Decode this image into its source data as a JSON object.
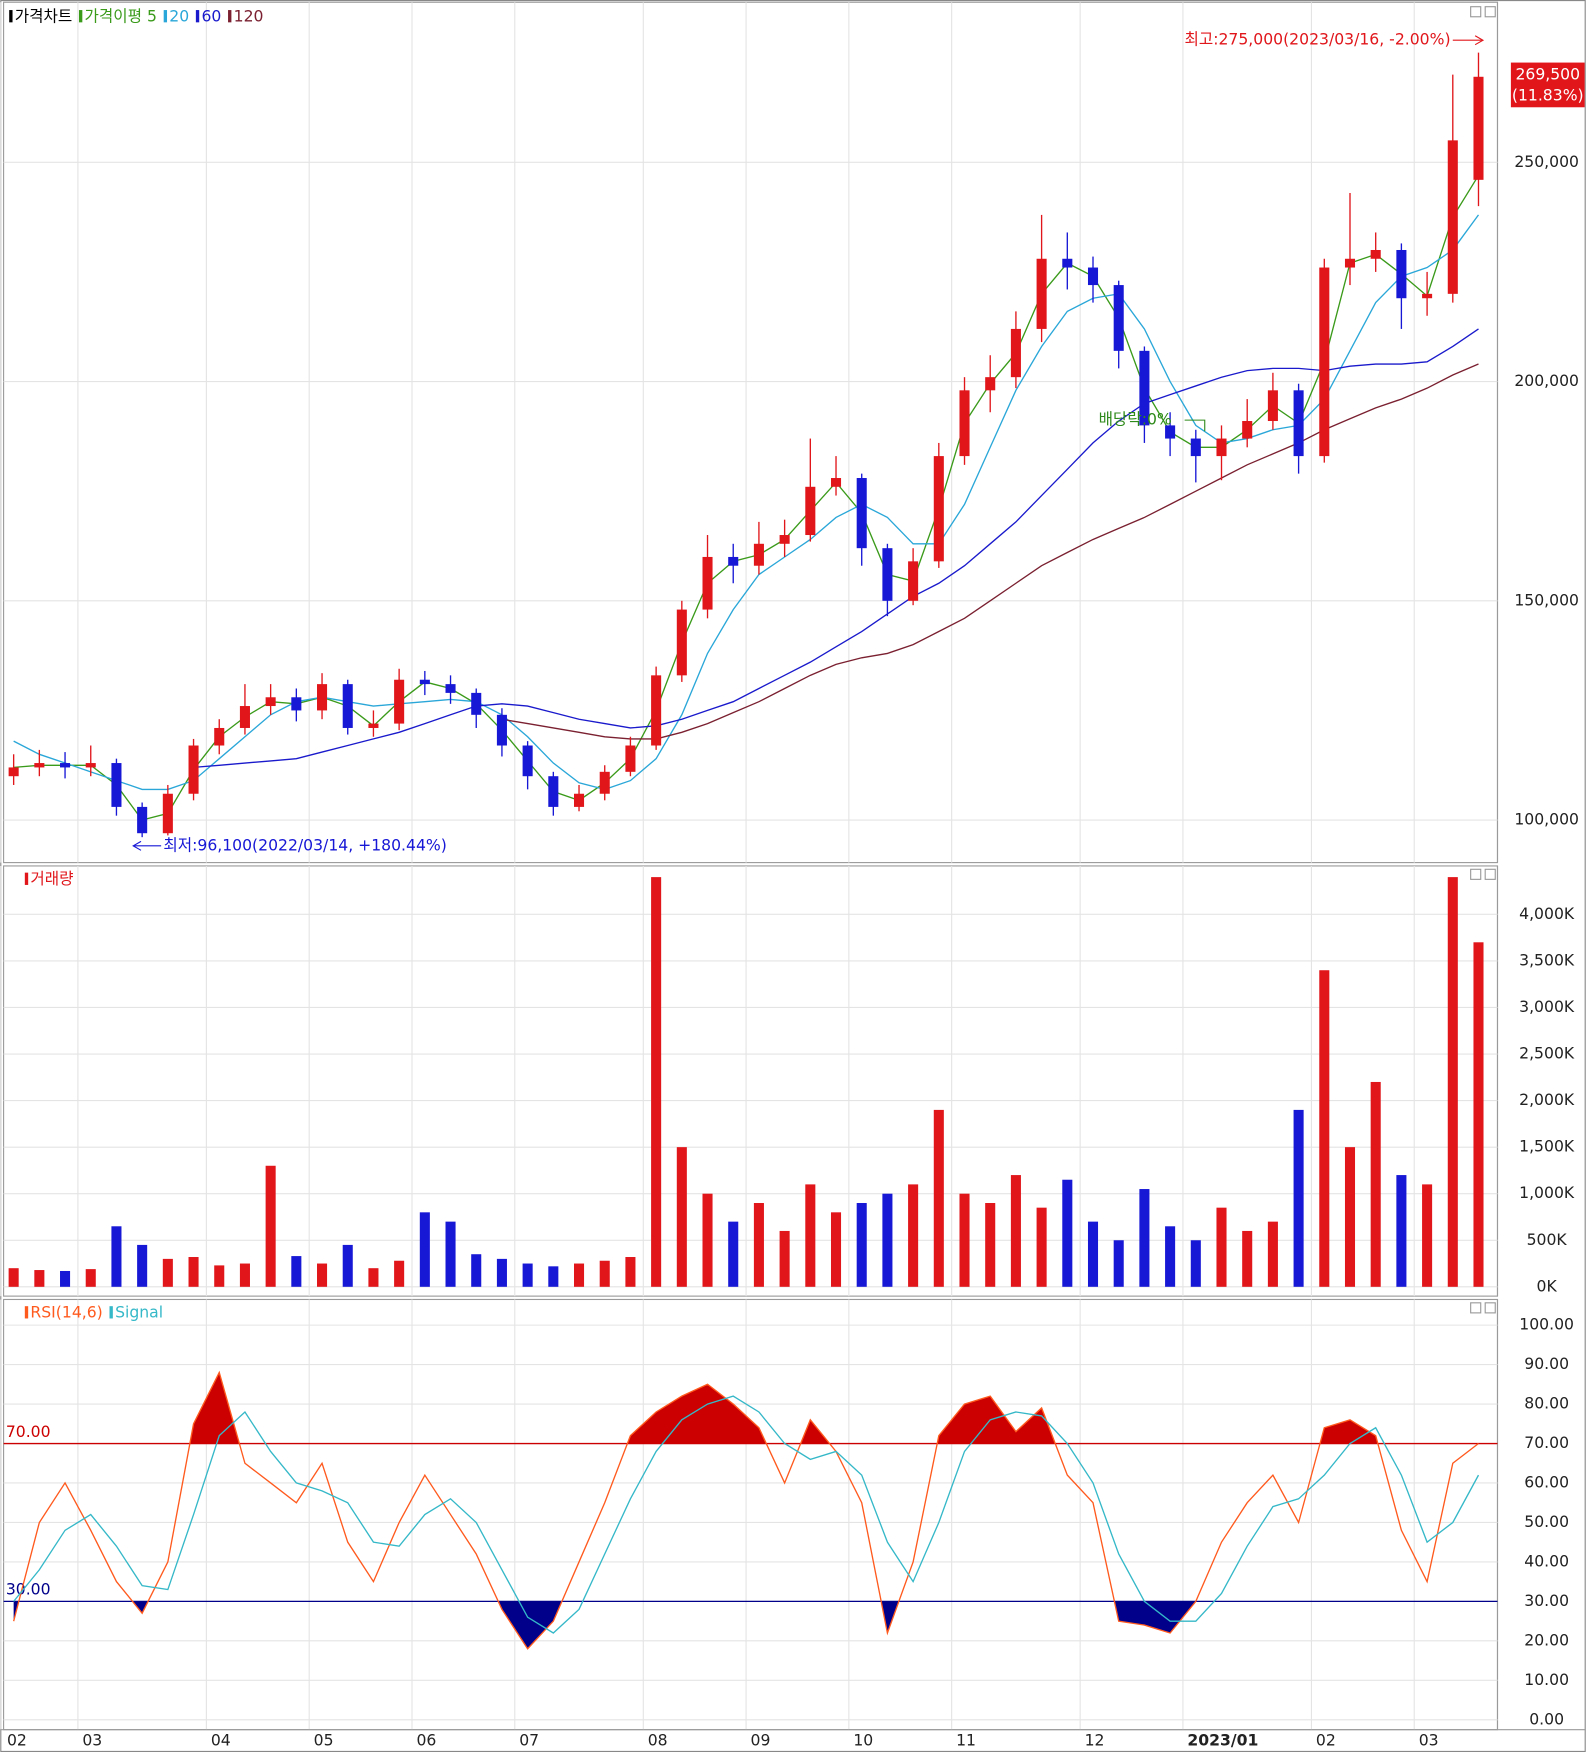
{
  "chart_data": [
    {
      "type": "candlestick",
      "title": "가격차트",
      "title_color": "#000000",
      "categories": [
        "02",
        null,
        null,
        "03",
        null,
        null,
        null,
        null,
        "04",
        null,
        null,
        null,
        "05",
        null,
        null,
        null,
        "06",
        null,
        null,
        null,
        "07",
        null,
        null,
        null,
        null,
        "08",
        null,
        null,
        null,
        "09",
        null,
        null,
        null,
        "10",
        null,
        null,
        null,
        "11",
        null,
        null,
        null,
        null,
        "12",
        null,
        null,
        null,
        "2023/01",
        null,
        null,
        null,
        null,
        "02",
        null,
        null,
        null,
        "03",
        null,
        null
      ],
      "open": [
        110000,
        112000,
        113000,
        112000,
        113000,
        103000,
        97000,
        106000,
        117000,
        121000,
        126000,
        128000,
        125000,
        131000,
        121000,
        122000,
        132000,
        131000,
        129000,
        124000,
        117000,
        110000,
        103000,
        106000,
        111000,
        117000,
        133000,
        148000,
        160000,
        158000,
        163000,
        165000,
        176000,
        178000,
        162000,
        150000,
        159000,
        183000,
        198000,
        201000,
        212000,
        228000,
        226000,
        222000,
        207000,
        190000,
        187000,
        183000,
        187000,
        191000,
        198000,
        183000,
        226000,
        228000,
        230000,
        219000,
        220000,
        246000
      ],
      "high": [
        115000,
        116000,
        115500,
        117000,
        114000,
        104000,
        108000,
        118500,
        123000,
        131000,
        131000,
        130000,
        133500,
        132000,
        125000,
        134500,
        134000,
        133000,
        130000,
        125500,
        118000,
        111000,
        108000,
        112500,
        119000,
        135000,
        150000,
        165000,
        163000,
        168000,
        168500,
        187000,
        183000,
        179000,
        163000,
        162000,
        186000,
        201000,
        206000,
        216000,
        238000,
        234000,
        228500,
        223000,
        208000,
        193000,
        189000,
        190000,
        196000,
        202000,
        199500,
        228000,
        243000,
        234000,
        231500,
        225000,
        270000,
        275000
      ],
      "low": [
        108000,
        110000,
        109500,
        110000,
        101000,
        96100,
        96500,
        104500,
        115000,
        119500,
        124000,
        122500,
        123000,
        119500,
        119000,
        120500,
        128500,
        126500,
        121000,
        114500,
        107000,
        101000,
        102000,
        104500,
        110000,
        116000,
        131500,
        146000,
        154000,
        156000,
        160000,
        163500,
        174000,
        158000,
        146500,
        149000,
        157500,
        181000,
        193000,
        198500,
        209000,
        221000,
        218000,
        203000,
        186000,
        183000,
        177000,
        177500,
        185000,
        189000,
        179000,
        181500,
        222000,
        225000,
        212000,
        215000,
        218000,
        240000
      ],
      "close": [
        112000,
        113000,
        112000,
        113000,
        103000,
        97000,
        106000,
        117000,
        121000,
        126000,
        128000,
        125000,
        131000,
        121000,
        122000,
        132000,
        131000,
        129000,
        124000,
        117000,
        110000,
        103000,
        106000,
        111000,
        117000,
        133000,
        148000,
        160000,
        158000,
        163000,
        165000,
        176000,
        178000,
        162000,
        150000,
        159000,
        183000,
        198000,
        201000,
        212000,
        228000,
        226000,
        222000,
        207000,
        190000,
        187000,
        183000,
        187000,
        191000,
        198000,
        183000,
        226000,
        228000,
        230000,
        219000,
        220000,
        255000,
        269500
      ],
      "up_color": "#e0161b",
      "down_color": "#1717d6",
      "series": [
        {
          "name": "가격이평 5",
          "color": "#3a9a1a",
          "values": [
            112000,
            112500,
            112500,
            112500,
            108000,
            100000,
            101500,
            111500,
            119000,
            123500,
            127000,
            126500,
            128000,
            126000,
            121500,
            127000,
            131500,
            130000,
            126500,
            120500,
            113500,
            106500,
            104500,
            108500,
            114000,
            125000,
            140500,
            154000,
            159000,
            160500,
            164000,
            170500,
            177000,
            170000,
            156000,
            154500,
            171000,
            190500,
            199500,
            206500,
            220000,
            227000,
            224000,
            214500,
            198500,
            188500,
            185000,
            185000,
            189000,
            194500,
            190500,
            204500,
            227000,
            229000,
            224500,
            219500,
            237500,
            247000
          ]
        },
        {
          "name": "20",
          "color": "#2aa7d8",
          "values": [
            118000,
            115000,
            113000,
            111000,
            109000,
            107000,
            107000,
            109000,
            114000,
            119000,
            124000,
            127000,
            128000,
            127000,
            126000,
            126500,
            127000,
            127500,
            127000,
            124000,
            119000,
            113000,
            108500,
            107000,
            109000,
            114000,
            124000,
            138000,
            148000,
            156000,
            160000,
            164000,
            169000,
            172000,
            169000,
            163000,
            163000,
            172000,
            185000,
            198000,
            208000,
            216000,
            219000,
            220000,
            212000,
            200000,
            190000,
            186000,
            187000,
            189000,
            190000,
            196000,
            207000,
            218000,
            224000,
            226000,
            230000,
            238000
          ]
        },
        {
          "name": "60",
          "color": "#1a1acc",
          "values": [
            null,
            null,
            null,
            null,
            null,
            null,
            null,
            112000,
            112500,
            113000,
            113500,
            114000,
            115500,
            117000,
            118500,
            120000,
            122000,
            124000,
            126000,
            126500,
            126000,
            124500,
            123000,
            122000,
            121000,
            121500,
            123000,
            125000,
            127000,
            130000,
            133000,
            136000,
            139500,
            143000,
            147000,
            151000,
            154000,
            158000,
            163000,
            168000,
            174000,
            180000,
            186000,
            191000,
            195000,
            197000,
            199000,
            201000,
            202500,
            203000,
            203000,
            202500,
            203500,
            204000,
            204000,
            204500,
            208000,
            212000
          ]
        },
        {
          "name": "120",
          "color": "#7a2030",
          "values": [
            null,
            null,
            null,
            null,
            null,
            null,
            null,
            null,
            null,
            null,
            null,
            null,
            null,
            null,
            null,
            null,
            null,
            null,
            null,
            123000,
            122000,
            121000,
            120000,
            119000,
            118500,
            118500,
            120000,
            122000,
            124500,
            127000,
            130000,
            133000,
            135500,
            137000,
            138000,
            140000,
            143000,
            146000,
            150000,
            154000,
            158000,
            161000,
            164000,
            166500,
            169000,
            172000,
            175000,
            178000,
            181000,
            183500,
            186000,
            189000,
            191500,
            194000,
            196000,
            198500,
            201500,
            204000
          ]
        }
      ],
      "ylim": [
        90300,
        286500
      ],
      "yticks": [
        {
          "value": 100000,
          "label": "100,000"
        },
        {
          "value": 150000,
          "label": "150,000"
        },
        {
          "value": 200000,
          "label": "200,000"
        },
        {
          "value": 250000,
          "label": "250,000"
        }
      ],
      "grid": true,
      "high_label": "최고:275,000(2023/03/16, -2.00%)",
      "low_label": "최저:96,100(2022/03/14, +180.44%)",
      "last_price_label": "269,500",
      "last_change_label": "(11.83%)",
      "ex_dividend_label": "배당락:0%"
    },
    {
      "type": "bar",
      "title": "거래량",
      "title_color": "#e0161b",
      "values": [
        200,
        180,
        170,
        190,
        650,
        450,
        300,
        320,
        230,
        250,
        1300,
        330,
        250,
        450,
        200,
        280,
        800,
        700,
        350,
        300,
        250,
        220,
        250,
        280,
        320,
        4400,
        1500,
        1000,
        700,
        900,
        600,
        1100,
        800,
        900,
        1000,
        1100,
        1900,
        1000,
        900,
        1200,
        850,
        1150,
        700,
        500,
        1050,
        650,
        500,
        850,
        600,
        700,
        1900,
        3400,
        1500,
        2200,
        1200,
        1100,
        4400,
        3700
      ],
      "ylim": [
        -100,
        4520
      ],
      "yticks": [
        {
          "value": 0,
          "label": "0K"
        },
        {
          "value": 500,
          "label": "500K"
        },
        {
          "value": 1000,
          "label": "1,000K"
        },
        {
          "value": 1500,
          "label": "1,500K"
        },
        {
          "value": 2000,
          "label": "2,000K"
        },
        {
          "value": 2500,
          "label": "2,500K"
        },
        {
          "value": 3000,
          "label": "3,000K"
        },
        {
          "value": 3500,
          "label": "3,500K"
        },
        {
          "value": 4000,
          "label": "4,000K"
        }
      ],
      "grid": true
    },
    {
      "type": "line",
      "title": "RSI(14,6)",
      "series": [
        {
          "name": "RSI(14,6)",
          "color": "#ff5a1e",
          "values": [
            25,
            50,
            60,
            48,
            35,
            27,
            40,
            75,
            88,
            65,
            60,
            55,
            65,
            45,
            35,
            50,
            62,
            52,
            42,
            28,
            18,
            25,
            40,
            55,
            72,
            78,
            82,
            85,
            80,
            74,
            60,
            76,
            68,
            55,
            22,
            40,
            72,
            80,
            82,
            73,
            79,
            62,
            55,
            25,
            24,
            22,
            30,
            45,
            55,
            62,
            50,
            74,
            76,
            72,
            48,
            35,
            65,
            70
          ]
        },
        {
          "name": "Signal",
          "color": "#35b8c8",
          "values": [
            30,
            38,
            48,
            52,
            44,
            34,
            33,
            52,
            72,
            78,
            68,
            60,
            58,
            55,
            45,
            44,
            52,
            56,
            50,
            38,
            26,
            22,
            28,
            42,
            56,
            68,
            76,
            80,
            82,
            78,
            70,
            66,
            68,
            62,
            45,
            35,
            50,
            68,
            76,
            78,
            77,
            70,
            60,
            42,
            30,
            25,
            25,
            32,
            44,
            54,
            56,
            62,
            70,
            74,
            62,
            45,
            50,
            62
          ]
        }
      ],
      "levels": [
        {
          "value": 70,
          "label": "70.00",
          "color": "#cc0000",
          "fill": "#cc0000"
        },
        {
          "value": 30,
          "label": "30.00",
          "color": "#00008b",
          "fill": "#00008b"
        }
      ],
      "ylim": [
        -2.5,
        106.5
      ],
      "yticks": [
        {
          "value": 0,
          "label": "0.00"
        },
        {
          "value": 10,
          "label": "10.00"
        },
        {
          "value": 20,
          "label": "20.00"
        },
        {
          "value": 30,
          "label": "30.00"
        },
        {
          "value": 40,
          "label": "40.00"
        },
        {
          "value": 50,
          "label": "50.00"
        },
        {
          "value": 60,
          "label": "60.00"
        },
        {
          "value": 70,
          "label": "70.00"
        },
        {
          "value": 80,
          "label": "80.00"
        },
        {
          "value": 90,
          "label": "90.00"
        },
        {
          "value": 100,
          "label": "100.00"
        }
      ],
      "grid": true
    }
  ]
}
